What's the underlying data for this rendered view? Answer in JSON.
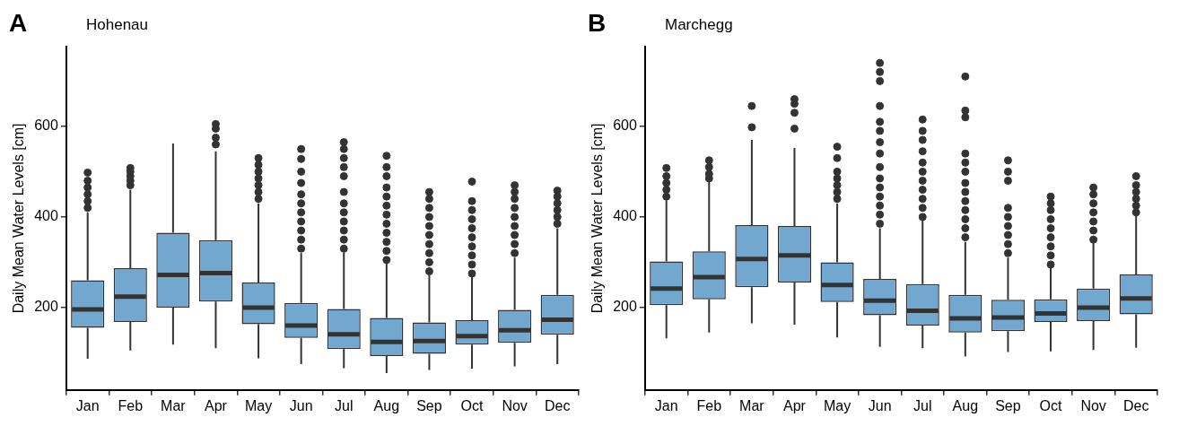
{
  "chart_data": [
    {
      "type": "box",
      "title": "Hohenau",
      "ylabel": "Daily Mean Water Levels [cm]",
      "annotations": [
        "A"
      ],
      "categories": [
        "Jan",
        "Feb",
        "Mar",
        "Apr",
        "May",
        "Jun",
        "Jul",
        "Aug",
        "Sep",
        "Oct",
        "Nov",
        "Dec"
      ],
      "ylim": [
        18,
        776
      ],
      "yticks": [
        200,
        400,
        600
      ],
      "grid": false,
      "legend": false,
      "series": [
        {
          "color": "#72a8d0",
          "boxes": [
            {
              "low": 87,
              "q1": 155,
              "median": 196,
              "q3": 260,
              "high": 410,
              "outliers": [
                420,
                435,
                450,
                465,
                480,
                498
              ]
            },
            {
              "low": 105,
              "q1": 168,
              "median": 224,
              "q3": 287,
              "high": 460,
              "outliers": [
                470,
                480,
                490,
                500,
                508
              ]
            },
            {
              "low": 118,
              "q1": 200,
              "median": 272,
              "q3": 365,
              "high": 562
            },
            {
              "low": 110,
              "q1": 213,
              "median": 276,
              "q3": 349,
              "high": 545,
              "outliers": [
                560,
                575,
                595,
                605
              ]
            },
            {
              "low": 88,
              "q1": 163,
              "median": 200,
              "q3": 255,
              "high": 430,
              "outliers": [
                440,
                455,
                470,
                485,
                500,
                515,
                530
              ]
            },
            {
              "low": 75,
              "q1": 133,
              "median": 160,
              "q3": 210,
              "high": 320,
              "outliers": [
                330,
                350,
                370,
                390,
                410,
                430,
                450,
                475,
                500,
                528,
                550
              ]
            },
            {
              "low": 66,
              "q1": 108,
              "median": 141,
              "q3": 197,
              "high": 322,
              "outliers": [
                330,
                350,
                370,
                390,
                410,
                430,
                455,
                490,
                510,
                530,
                550,
                565
              ]
            },
            {
              "low": 55,
              "q1": 93,
              "median": 124,
              "q3": 177,
              "high": 300,
              "outliers": [
                305,
                325,
                345,
                365,
                385,
                405,
                425,
                445,
                465,
                490,
                510,
                535
              ]
            },
            {
              "low": 62,
              "q1": 98,
              "median": 126,
              "q3": 167,
              "high": 272,
              "outliers": [
                280,
                300,
                320,
                340,
                360,
                380,
                400,
                420,
                440,
                455
              ]
            },
            {
              "low": 65,
              "q1": 118,
              "median": 137,
              "q3": 172,
              "high": 267,
              "outliers": [
                275,
                295,
                315,
                335,
                355,
                375,
                395,
                415,
                435,
                478
              ]
            },
            {
              "low": 70,
              "q1": 122,
              "median": 150,
              "q3": 195,
              "high": 310,
              "outliers": [
                320,
                340,
                360,
                380,
                400,
                420,
                440,
                455,
                470
              ]
            },
            {
              "low": 75,
              "q1": 140,
              "median": 173,
              "q3": 228,
              "high": 375,
              "outliers": [
                385,
                400,
                415,
                430,
                445,
                458
              ]
            }
          ]
        }
      ]
    },
    {
      "type": "box",
      "title": "Marchegg",
      "ylabel": "Daily Mean Water Levels [cm]",
      "annotations": [
        "B"
      ],
      "categories": [
        "Jan",
        "Feb",
        "Mar",
        "Apr",
        "May",
        "Jun",
        "Jul",
        "Aug",
        "Sep",
        "Oct",
        "Nov",
        "Dec"
      ],
      "ylim": [
        18,
        776
      ],
      "yticks": [
        200,
        400,
        600
      ],
      "grid": false,
      "legend": false,
      "series": [
        {
          "color": "#72a8d0",
          "boxes": [
            {
              "low": 132,
              "q1": 205,
              "median": 242,
              "q3": 302,
              "high": 437,
              "outliers": [
                445,
                460,
                475,
                490,
                508
              ]
            },
            {
              "low": 145,
              "q1": 218,
              "median": 267,
              "q3": 324,
              "high": 478,
              "outliers": [
                485,
                495,
                510,
                525
              ]
            },
            {
              "low": 165,
              "q1": 245,
              "median": 307,
              "q3": 382,
              "high": 570,
              "outliers": [
                598,
                645
              ]
            },
            {
              "low": 162,
              "q1": 255,
              "median": 315,
              "q3": 380,
              "high": 552,
              "outliers": [
                595,
                630,
                650,
                660
              ]
            },
            {
              "low": 134,
              "q1": 212,
              "median": 250,
              "q3": 300,
              "high": 430,
              "outliers": [
                440,
                455,
                470,
                485,
                500,
                530,
                555
              ]
            },
            {
              "low": 113,
              "q1": 183,
              "median": 215,
              "q3": 263,
              "high": 375,
              "outliers": [
                385,
                405,
                425,
                445,
                465,
                485,
                510,
                540,
                565,
                590,
                610,
                645,
                700,
                720,
                740
              ]
            },
            {
              "low": 110,
              "q1": 160,
              "median": 193,
              "q3": 252,
              "high": 393,
              "outliers": [
                400,
                420,
                440,
                460,
                480,
                500,
                520,
                545,
                570,
                590,
                615
              ]
            },
            {
              "low": 92,
              "q1": 145,
              "median": 176,
              "q3": 228,
              "high": 345,
              "outliers": [
                355,
                375,
                395,
                415,
                435,
                455,
                475,
                500,
                520,
                540,
                620,
                635,
                710
              ]
            },
            {
              "low": 102,
              "q1": 148,
              "median": 178,
              "q3": 217,
              "high": 310,
              "outliers": [
                320,
                340,
                360,
                380,
                400,
                420,
                480,
                500,
                525
              ]
            },
            {
              "low": 103,
              "q1": 168,
              "median": 187,
              "q3": 218,
              "high": 288,
              "outliers": [
                295,
                315,
                335,
                355,
                375,
                395,
                415,
                430,
                445
              ]
            },
            {
              "low": 106,
              "q1": 170,
              "median": 200,
              "q3": 242,
              "high": 345,
              "outliers": [
                350,
                370,
                390,
                410,
                430,
                450,
                465
              ]
            },
            {
              "low": 111,
              "q1": 185,
              "median": 220,
              "q3": 273,
              "high": 405,
              "outliers": [
                410,
                425,
                440,
                455,
                470,
                490
              ]
            }
          ]
        }
      ]
    }
  ]
}
